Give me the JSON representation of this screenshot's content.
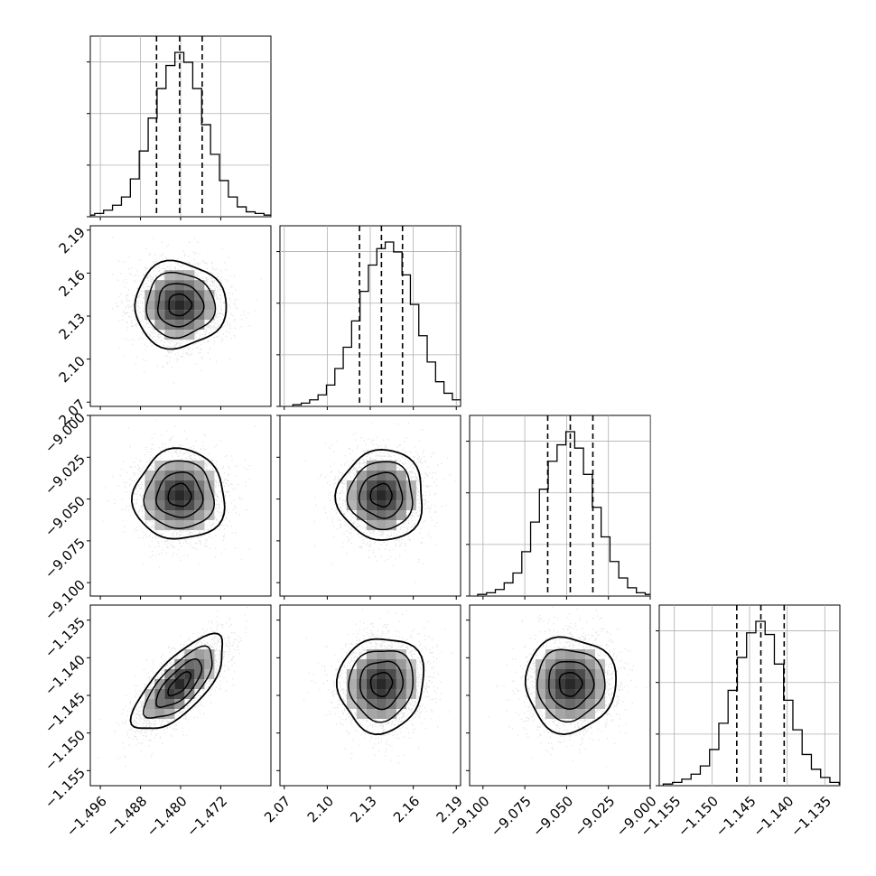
{
  "chart_data": {
    "type": "corner",
    "grid": true,
    "title": "",
    "parameters": [
      {
        "range": [
          -1.498,
          -1.462
        ],
        "ticks": [
          -1.496,
          -1.488,
          -1.48,
          -1.472
        ],
        "tick_labels": [
          "−1.496",
          "−1.488",
          "−1.480",
          "−1.472"
        ],
        "quantiles": {
          "q16": -1.4848,
          "q50": -1.4802,
          "q84": -1.4757
        },
        "hist_heights": [
          0.01,
          0.02,
          0.04,
          0.07,
          0.12,
          0.23,
          0.4,
          0.6,
          0.78,
          0.92,
          1.0,
          0.94,
          0.78,
          0.56,
          0.38,
          0.22,
          0.12,
          0.06,
          0.03,
          0.02,
          0.01
        ]
      },
      {
        "range": [
          2.067,
          2.193
        ],
        "ticks": [
          2.07,
          2.1,
          2.13,
          2.16,
          2.19
        ],
        "tick_labels": [
          "2.07",
          "2.10",
          "2.13",
          "2.16",
          "2.19"
        ],
        "quantiles": {
          "q16": 2.1225,
          "q50": 2.1378,
          "q84": 2.1525
        },
        "hist_heights": [
          0.01,
          0.02,
          0.04,
          0.07,
          0.13,
          0.23,
          0.36,
          0.52,
          0.7,
          0.86,
          0.96,
          1.0,
          0.94,
          0.8,
          0.62,
          0.43,
          0.27,
          0.15,
          0.08,
          0.04,
          0.02
        ]
      },
      {
        "range": [
          -9.108,
          -9.0
        ],
        "ticks": [
          -9.1,
          -9.075,
          -9.05,
          -9.025,
          -9.0
        ],
        "tick_labels": [
          "−9.100",
          "−9.075",
          "−9.050",
          "−9.025",
          "−9.000"
        ],
        "quantiles": {
          "q16": -9.0613,
          "q50": -9.0478,
          "q84": -9.0343
        },
        "hist_heights": [
          0.01,
          0.02,
          0.04,
          0.08,
          0.14,
          0.27,
          0.45,
          0.65,
          0.82,
          0.92,
          1.0,
          0.9,
          0.74,
          0.54,
          0.36,
          0.21,
          0.11,
          0.05,
          0.02,
          0.01,
          0.005
        ]
      },
      {
        "range": [
          -1.157,
          -1.133
        ],
        "ticks": [
          -1.155,
          -1.15,
          -1.145,
          -1.14,
          -1.135
        ],
        "tick_labels": [
          "−1.155",
          "−1.150",
          "−1.145",
          "−1.140",
          "−1.135"
        ],
        "quantiles": {
          "q16": -1.1467,
          "q50": -1.1435,
          "q84": -1.1404
        },
        "hist_heights": [
          0.01,
          0.02,
          0.04,
          0.07,
          0.12,
          0.22,
          0.38,
          0.58,
          0.78,
          0.93,
          1.0,
          0.92,
          0.74,
          0.52,
          0.34,
          0.19,
          0.1,
          0.05,
          0.02,
          0.01,
          0.005
        ]
      }
    ],
    "pair_correlations": {
      "1-0": 0.0,
      "2-0": 0.0,
      "2-1": 0.0,
      "3-0": 0.72,
      "3-1": 0.05,
      "3-2": 0.0
    },
    "contour_levels": [
      0.118,
      0.393,
      0.675,
      0.865
    ]
  }
}
